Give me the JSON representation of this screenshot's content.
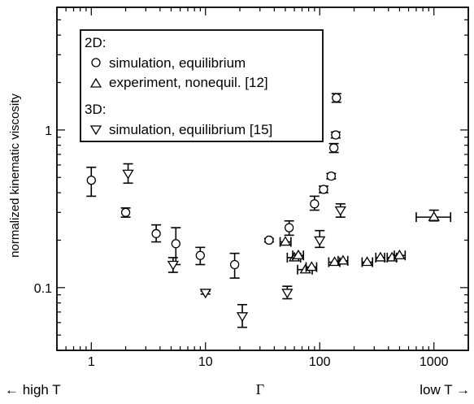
{
  "chart_data": {
    "type": "scatter",
    "xscale": "log",
    "yscale": "log",
    "xlim": [
      0.5,
      2000
    ],
    "ylim": [
      0.04,
      6
    ],
    "xticks": [
      1,
      10,
      100,
      1000
    ],
    "xticklabels": [
      "1",
      "10",
      "100",
      "1000"
    ],
    "yticks": [
      0.1,
      1
    ],
    "yticklabels": [
      "0.1",
      "1"
    ],
    "ylabel": "normalized kinematic viscosity",
    "xlabel": "Γ",
    "xlabel_left": "← high T",
    "xlabel_right": "low T →",
    "legend": {
      "placement": "top-left",
      "group1": "2D:",
      "group2": "3D:"
    },
    "series": [
      {
        "name": "simulation, equilibrium",
        "group": "2D",
        "marker": "circle",
        "points": [
          {
            "x": 1,
            "y": 0.48,
            "ylo": 0.38,
            "yhi": 0.58
          },
          {
            "x": 2,
            "y": 0.3,
            "ylo": 0.28,
            "yhi": 0.32
          },
          {
            "x": 3.7,
            "y": 0.22,
            "ylo": 0.195,
            "yhi": 0.25
          },
          {
            "x": 5.5,
            "y": 0.19,
            "ylo": 0.14,
            "yhi": 0.24
          },
          {
            "x": 9,
            "y": 0.16,
            "ylo": 0.14,
            "yhi": 0.18
          },
          {
            "x": 18,
            "y": 0.14,
            "ylo": 0.115,
            "yhi": 0.165
          },
          {
            "x": 36,
            "y": 0.2,
            "ylo": 0.195,
            "yhi": 0.205
          },
          {
            "x": 54,
            "y": 0.24,
            "ylo": 0.215,
            "yhi": 0.265
          },
          {
            "x": 90,
            "y": 0.34,
            "ylo": 0.31,
            "yhi": 0.38
          },
          {
            "x": 108,
            "y": 0.42,
            "ylo": 0.4,
            "yhi": 0.44
          },
          {
            "x": 126,
            "y": 0.51,
            "ylo": 0.49,
            "yhi": 0.53
          },
          {
            "x": 133,
            "y": 0.77,
            "ylo": 0.72,
            "yhi": 0.82
          },
          {
            "x": 138,
            "y": 0.93,
            "ylo": 0.89,
            "yhi": 0.97
          },
          {
            "x": 140,
            "y": 1.6,
            "ylo": 1.5,
            "yhi": 1.7
          }
        ]
      },
      {
        "name": "experiment, nonequil. [12]",
        "group": "2D",
        "marker": "triangle-up",
        "points": [
          {
            "x": 50,
            "y": 0.195,
            "xlo": 45,
            "xhi": 56
          },
          {
            "x": 60,
            "y": 0.155,
            "xlo": 52,
            "xhi": 68
          },
          {
            "x": 65,
            "y": 0.16,
            "xlo": 58,
            "xhi": 72
          },
          {
            "x": 75,
            "y": 0.13,
            "xlo": 64,
            "xhi": 86
          },
          {
            "x": 85,
            "y": 0.135,
            "xlo": 76,
            "xhi": 94
          },
          {
            "x": 135,
            "y": 0.145,
            "xlo": 120,
            "xhi": 150
          },
          {
            "x": 160,
            "y": 0.148,
            "xlo": 145,
            "xhi": 176
          },
          {
            "x": 260,
            "y": 0.145,
            "xlo": 235,
            "xhi": 290
          },
          {
            "x": 340,
            "y": 0.155,
            "xlo": 310,
            "xhi": 370
          },
          {
            "x": 430,
            "y": 0.155,
            "xlo": 390,
            "xhi": 470
          },
          {
            "x": 500,
            "y": 0.16,
            "xlo": 450,
            "xhi": 560
          },
          {
            "x": 1000,
            "y": 0.28,
            "xlo": 700,
            "xhi": 1400,
            "ylo": 0.265,
            "yhi": 0.31
          }
        ]
      },
      {
        "name": "simulation, equilibrium [15]",
        "group": "3D",
        "marker": "triangle-down",
        "points": [
          {
            "x": 2.1,
            "y": 0.53,
            "ylo": 0.46,
            "yhi": 0.61
          },
          {
            "x": 5.2,
            "y": 0.14,
            "ylo": 0.125,
            "yhi": 0.155
          },
          {
            "x": 10,
            "y": 0.093,
            "ylo": 0.091,
            "yhi": 0.095
          },
          {
            "x": 21,
            "y": 0.066,
            "ylo": 0.056,
            "yhi": 0.078
          },
          {
            "x": 52,
            "y": 0.093,
            "ylo": 0.085,
            "yhi": 0.102
          },
          {
            "x": 100,
            "y": 0.2,
            "ylo": 0.18,
            "yhi": 0.23
          },
          {
            "x": 152,
            "y": 0.31,
            "ylo": 0.28,
            "yhi": 0.34
          }
        ]
      }
    ]
  }
}
